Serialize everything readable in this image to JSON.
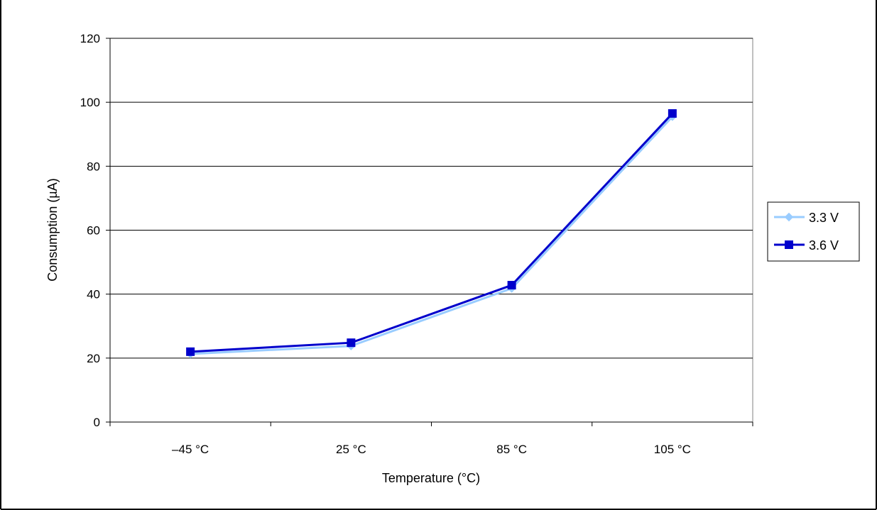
{
  "chart_data": {
    "type": "line",
    "categories": [
      "–45 °C",
      "25 °C",
      "85 °C",
      "105 °C"
    ],
    "series": [
      {
        "name": "3.3 V",
        "values": [
          21.3,
          23.8,
          41.8,
          95.5
        ],
        "color": "#99ccff",
        "marker": "diamond"
      },
      {
        "name": "3.6 V",
        "values": [
          22.0,
          24.8,
          42.8,
          96.5
        ],
        "color": "#0000cc",
        "marker": "square"
      }
    ],
    "xlabel": "Temperature (°C)",
    "ylabel": "Consumption (µA)",
    "ylim": [
      0,
      120
    ],
    "yticks": [
      0,
      20,
      40,
      60,
      80,
      100,
      120
    ],
    "grid": true,
    "legend_position": "right"
  }
}
